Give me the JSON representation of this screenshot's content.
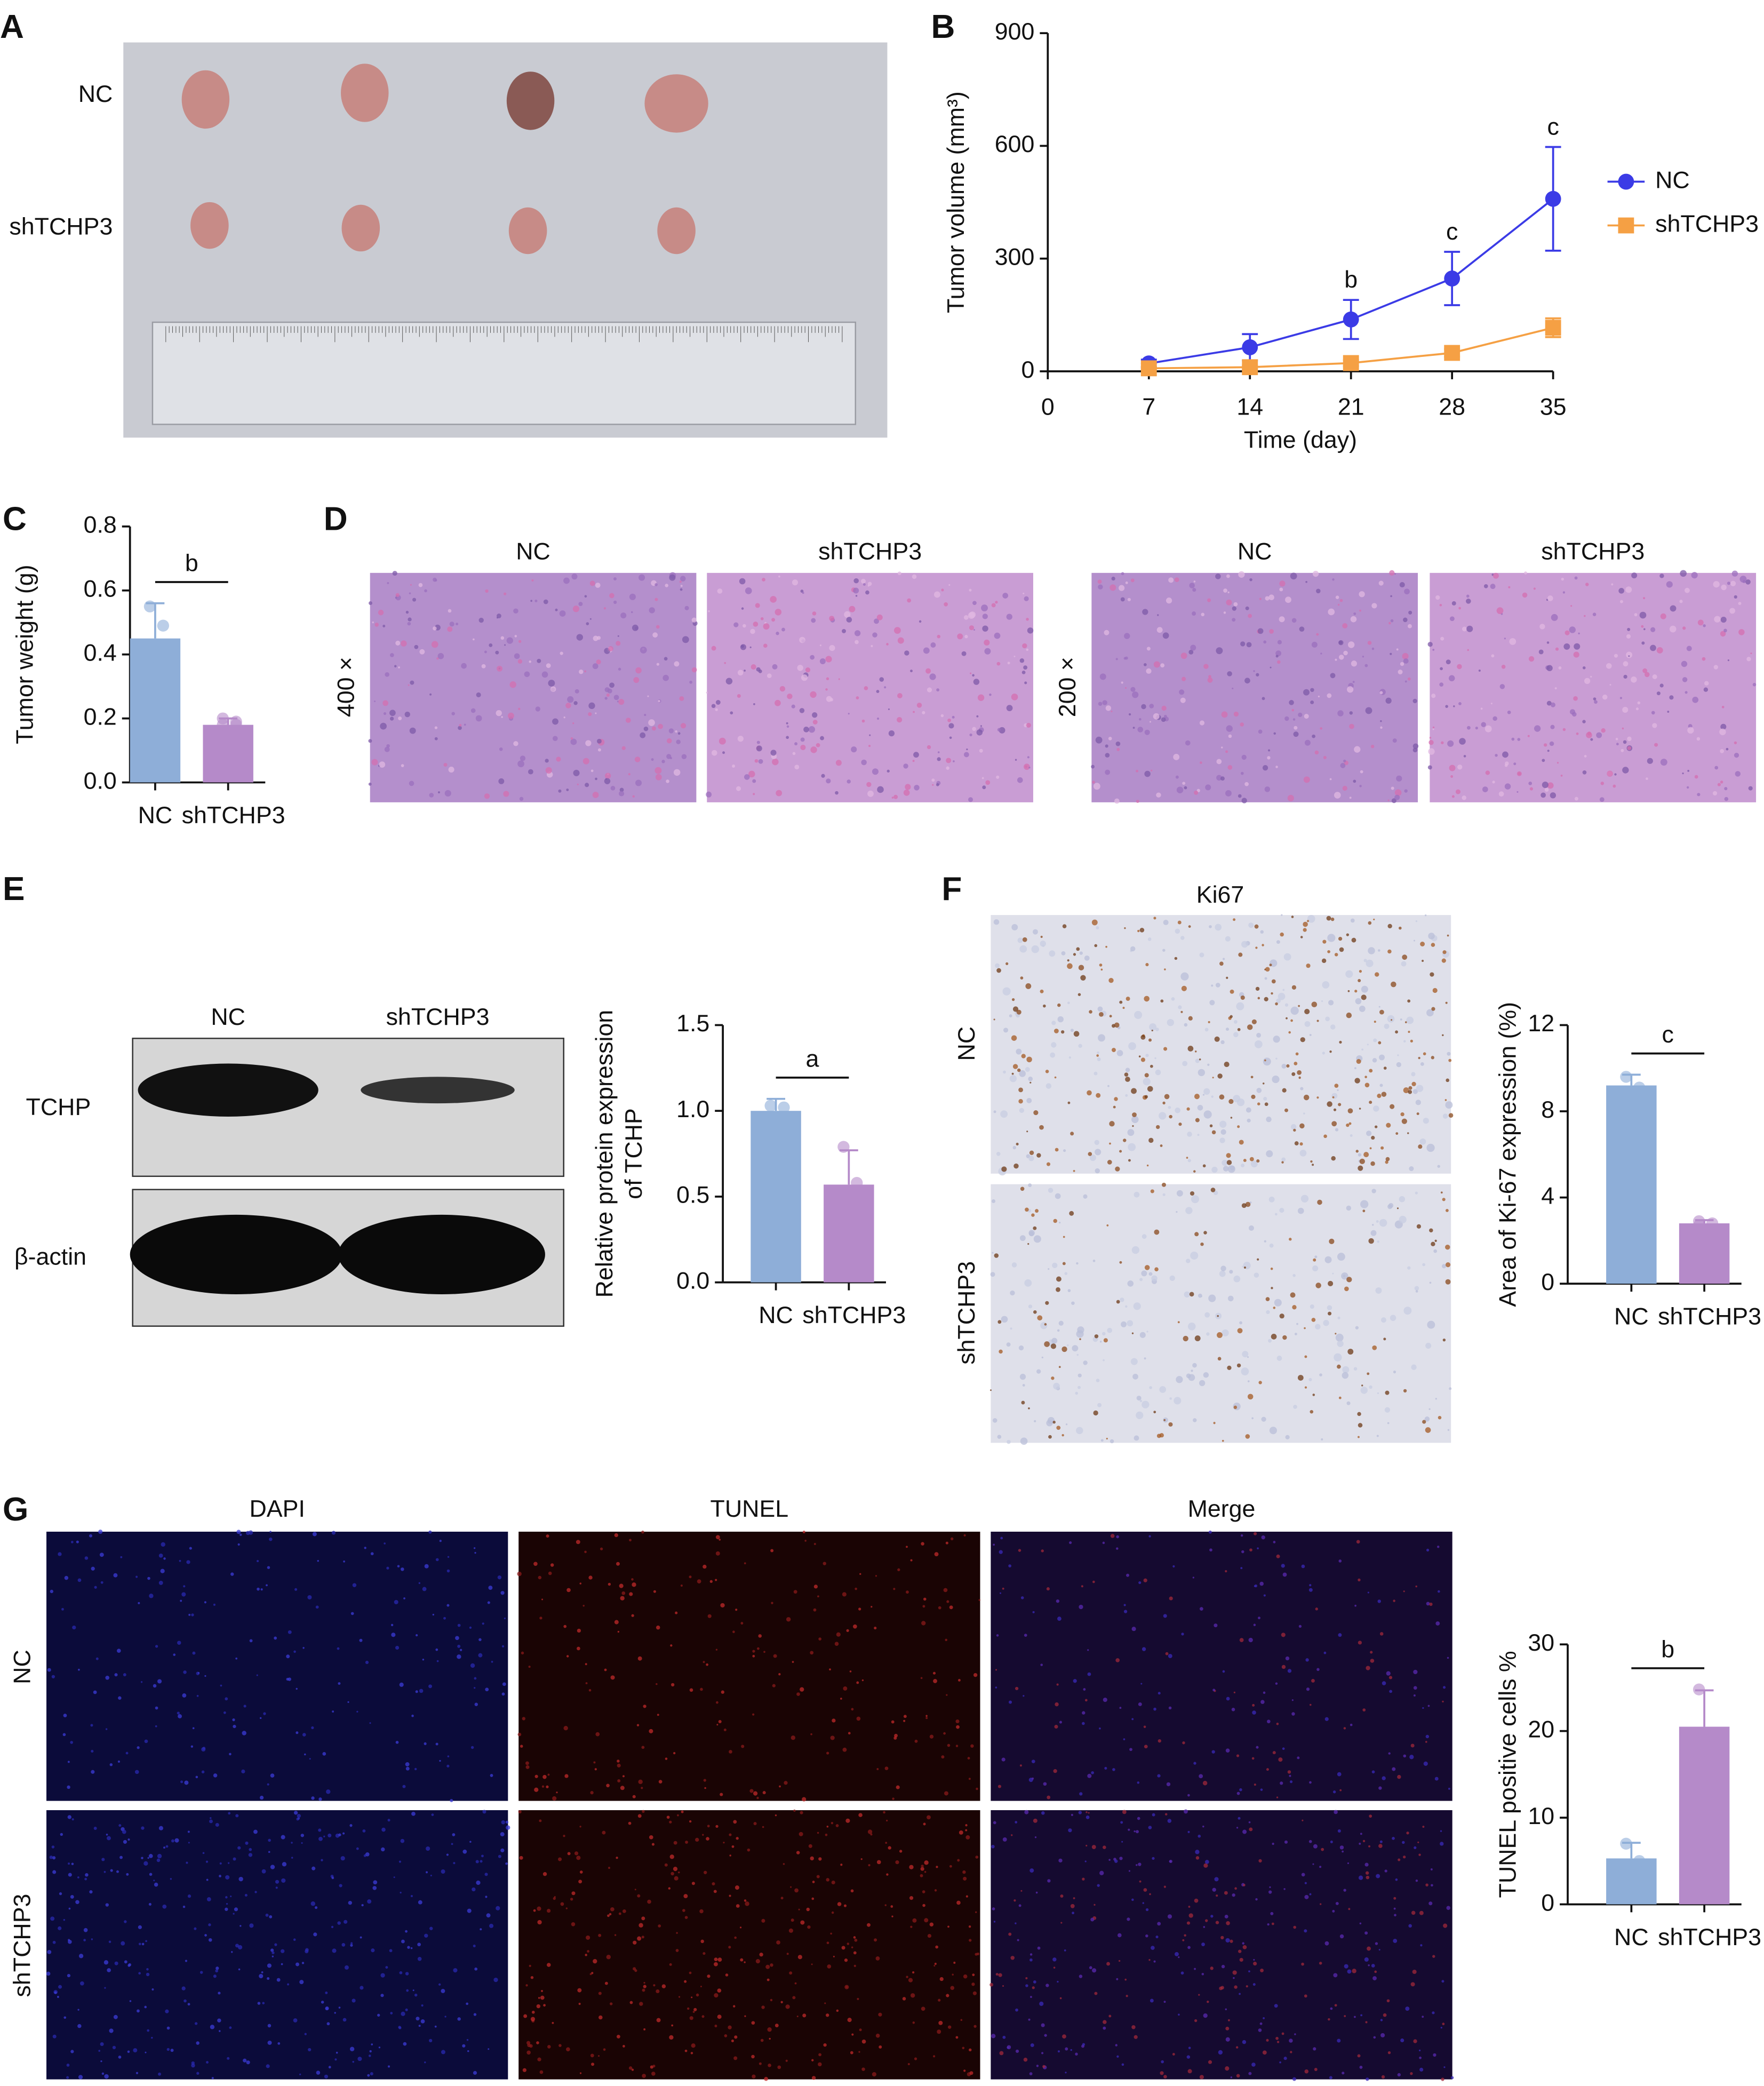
{
  "panels": {
    "A": {
      "label": "A",
      "rows": [
        "NC",
        "shTCHP3"
      ]
    },
    "B": {
      "label": "B"
    },
    "C": {
      "label": "C"
    },
    "D": {
      "label": "D",
      "columns": [
        "NC",
        "shTCHP3",
        "NC",
        "shTCHP3"
      ],
      "magnifications": [
        "400 ×",
        "200 ×"
      ]
    },
    "E": {
      "label": "E",
      "lanes": [
        "NC",
        "shTCHP3"
      ],
      "bands": [
        "TCHP",
        "β-actin"
      ]
    },
    "F": {
      "label": "F",
      "stain": "Ki67",
      "rows": [
        "NC",
        "shTCHP3"
      ]
    },
    "G": {
      "label": "G",
      "columns": [
        "DAPI",
        "TUNEL",
        "Merge"
      ],
      "rows": [
        "NC",
        "shTCHP3"
      ]
    }
  },
  "chart_data": [
    {
      "type": "line",
      "xlabel": "Time (day)",
      "ylabel": "Tumor volume (mm³)",
      "x": [
        7,
        14,
        21,
        28,
        35
      ],
      "xlim": [
        0,
        35
      ],
      "xticks": [
        0,
        7,
        14,
        21,
        28,
        35
      ],
      "ylim": [
        0,
        900
      ],
      "yticks": [
        0,
        300,
        600,
        900
      ],
      "legend": "right",
      "series": [
        {
          "name": "NC",
          "color": "#3b3be6",
          "marker": "circle",
          "values": [
            21,
            64,
            138,
            247,
            459
          ],
          "errors": [
            10,
            35,
            52,
            71,
            138
          ]
        },
        {
          "name": "shTCHP3",
          "color": "#f5a044",
          "marker": "square",
          "values": [
            8,
            11,
            22,
            49,
            116
          ],
          "errors": [
            3,
            5,
            8,
            10,
            25
          ]
        }
      ],
      "annotations": [
        {
          "x": 21,
          "text": "b"
        },
        {
          "x": 28,
          "text": "c"
        },
        {
          "x": 35,
          "text": "c"
        }
      ]
    },
    {
      "type": "bar",
      "ylabel": "Tumor weight (g)",
      "categories": [
        "NC",
        "shTCHP3"
      ],
      "colors": [
        "#8eaed8",
        "#b58ac9"
      ],
      "values": [
        0.45,
        0.18
      ],
      "errors": [
        0.11,
        0.02
      ],
      "points": [
        [
          0.55,
          0.49,
          0.39,
          0.33
        ],
        [
          0.2,
          0.19,
          0.18,
          0.18
        ]
      ],
      "ylim": [
        0,
        0.8
      ],
      "yticks": [
        {
          "value": 0,
          "label": "0.0"
        },
        0.2,
        0.4,
        0.6,
        0.8
      ],
      "significance": "b"
    },
    {
      "type": "bar",
      "ylabel": [
        "Relative protein expression",
        "of TCHP"
      ],
      "categories": [
        "NC",
        "shTCHP3"
      ],
      "colors": [
        "#8eaed8",
        "#b58ac9"
      ],
      "values": [
        1.0,
        0.57
      ],
      "errors": [
        0.07,
        0.2
      ],
      "points": [
        [
          1.03,
          1.02,
          0.93
        ],
        [
          0.79,
          0.58,
          0.45
        ]
      ],
      "ylim": [
        0,
        1.5
      ],
      "yticks": [
        {
          "value": 0,
          "label": "0.0"
        },
        0.5,
        {
          "value": 1,
          "label": "1.0"
        },
        1.5
      ],
      "significance": "a"
    },
    {
      "type": "bar",
      "ylabel": "Area of Ki-67 expression (%)",
      "categories": [
        "NC",
        "shTCHP3"
      ],
      "colors": [
        "#8eaed8",
        "#b58ac9"
      ],
      "values": [
        9.2,
        2.8
      ],
      "errors": [
        0.5,
        0.15
      ],
      "points": [
        [
          9.6,
          9.1,
          8.9
        ],
        [
          2.9,
          2.8,
          2.7
        ]
      ],
      "ylim": [
        0,
        12
      ],
      "yticks": [
        0,
        4,
        8,
        12
      ],
      "significance": "c"
    },
    {
      "type": "bar",
      "ylabel": "TUNEL positive cells %",
      "categories": [
        "NC",
        "shTCHP3"
      ],
      "colors": [
        "#8eaed8",
        "#b58ac9"
      ],
      "values": [
        5.3,
        20.5
      ],
      "errors": [
        1.8,
        4.2
      ],
      "points": [
        [
          7.0,
          5.0,
          3.9
        ],
        [
          24.8,
          19.4,
          17.3
        ]
      ],
      "ylim": [
        0,
        30
      ],
      "yticks": [
        0,
        10,
        20,
        30
      ],
      "significance": "b"
    }
  ]
}
